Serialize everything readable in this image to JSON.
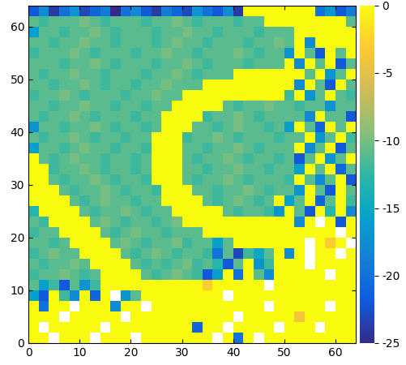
{
  "chart_data": {
    "type": "heatmap",
    "x_edges": [
      0,
      2,
      4,
      6,
      8,
      10,
      12,
      14,
      16,
      18,
      20,
      22,
      24,
      26,
      28,
      30,
      32,
      34,
      36,
      38,
      40,
      42,
      44,
      46,
      48,
      50,
      52,
      54,
      56,
      58,
      60,
      62,
      64
    ],
    "y_edges": [
      0,
      2,
      4,
      6,
      8,
      10,
      12,
      14,
      16,
      18,
      20,
      22,
      24,
      26,
      28,
      30,
      32,
      34,
      36,
      38,
      40,
      42,
      44,
      46,
      48,
      50,
      52,
      54,
      56,
      58,
      60,
      62,
      64
    ],
    "xlim": [
      0,
      64
    ],
    "ylim": [
      0,
      64
    ],
    "xticks": [
      0,
      10,
      20,
      30,
      40,
      50,
      60
    ],
    "yticks": [
      0,
      10,
      20,
      30,
      40,
      50,
      60
    ],
    "colorbar_range": [
      -25,
      0
    ],
    "colorbar_ticks": [
      -25,
      -20,
      -15,
      -10,
      -5,
      0
    ],
    "cells": [
      [
        0,
        0,
        null,
        0,
        0,
        0,
        null,
        0,
        0,
        0,
        null,
        0,
        0,
        0,
        0,
        0,
        0,
        0,
        null,
        0,
        -20,
        0,
        null,
        0,
        0,
        0,
        0,
        0,
        0,
        0,
        0,
        0
      ],
      [
        0,
        null,
        0,
        0,
        0,
        0,
        0,
        null,
        0,
        0,
        0,
        0,
        0,
        0,
        0,
        0,
        -21,
        0,
        0,
        null,
        0,
        0,
        0,
        0,
        null,
        0,
        0,
        0,
        null,
        0,
        0,
        0
      ],
      [
        0,
        0,
        0,
        null,
        0,
        0,
        0,
        0,
        0,
        null,
        0,
        0,
        0,
        0,
        0,
        0,
        0,
        0,
        0,
        0,
        null,
        0,
        0,
        0,
        0,
        0,
        -4,
        0,
        0,
        0,
        0,
        0
      ],
      [
        0,
        -20,
        0,
        0,
        null,
        0,
        0,
        0,
        -18,
        0,
        0,
        null,
        0,
        0,
        0,
        0,
        0,
        0,
        0,
        0,
        0,
        0,
        0,
        null,
        0,
        0,
        0,
        0,
        0,
        null,
        0,
        0
      ],
      [
        -16,
        -22,
        0,
        -12,
        -18,
        0,
        -21,
        0,
        null,
        -17,
        -11,
        0,
        0,
        0,
        0,
        0,
        0,
        0,
        0,
        null,
        0,
        0,
        0,
        0,
        0,
        0,
        0,
        0,
        0,
        0,
        0,
        0
      ],
      [
        -11,
        -16,
        -12,
        -22,
        -11,
        -17,
        -12,
        0,
        0,
        0,
        0,
        0,
        0,
        0,
        0,
        0,
        0,
        -3,
        0,
        0,
        0,
        0,
        0,
        null,
        0,
        0,
        0,
        0,
        0,
        0,
        0,
        0
      ],
      [
        -12,
        -11,
        -11,
        -10,
        -11,
        -12,
        -11,
        0,
        0,
        0,
        0,
        -11,
        -12,
        -11,
        -10,
        -11,
        -12,
        -22,
        -16,
        0,
        -20,
        0,
        -11,
        -18,
        0,
        0,
        0,
        0,
        0,
        null,
        0,
        0
      ],
      [
        -11,
        -12,
        -11,
        -11,
        -10,
        -11,
        0,
        0,
        0,
        0,
        -11,
        -12,
        -11,
        -12,
        -11,
        -10,
        -12,
        -11,
        -13,
        -22,
        -11,
        0,
        -17,
        -12,
        0,
        0,
        0,
        null,
        0,
        0,
        0,
        0
      ],
      [
        -12,
        -11,
        -10,
        -11,
        -11,
        0,
        0,
        0,
        0,
        -11,
        -12,
        -11,
        -10,
        -11,
        -12,
        -11,
        -11,
        -12,
        -20,
        -11,
        -23,
        -12,
        -15,
        -11,
        0,
        -18,
        0,
        null,
        0,
        0,
        null,
        0
      ],
      [
        -11,
        -11,
        -12,
        -11,
        0,
        0,
        0,
        0,
        -11,
        -10,
        -11,
        -12,
        -11,
        -11,
        -10,
        -12,
        -11,
        -11,
        -16,
        -11,
        0,
        0,
        0,
        0,
        0,
        0,
        0,
        null,
        0,
        -3,
        0,
        null
      ],
      [
        -12,
        -11,
        -11,
        0,
        0,
        0,
        0,
        -11,
        -12,
        -11,
        -10,
        -11,
        -11,
        -12,
        -11,
        -11,
        -11,
        0,
        0,
        0,
        0,
        0,
        0,
        0,
        0,
        0,
        0,
        0,
        0,
        0,
        null,
        0
      ],
      [
        -11,
        -12,
        0,
        0,
        0,
        0,
        -11,
        -10,
        -11,
        -12,
        -11,
        -11,
        -12,
        -11,
        -10,
        0,
        0,
        0,
        0,
        0,
        0,
        0,
        0,
        0,
        0,
        0,
        -18,
        0,
        null,
        0,
        -22,
        0
      ],
      [
        -13,
        0,
        0,
        0,
        0,
        -11,
        -12,
        -11,
        -11,
        -10,
        -11,
        -12,
        -11,
        -11,
        0,
        0,
        0,
        0,
        0,
        -11,
        -12,
        -11,
        -11,
        -12,
        -17,
        0,
        -11,
        -22,
        0,
        -13,
        0,
        -18
      ],
      [
        0,
        0,
        0,
        0,
        -11,
        -12,
        -11,
        -10,
        -11,
        -11,
        -12,
        -11,
        -11,
        0,
        0,
        0,
        0,
        -11,
        -12,
        -11,
        -10,
        -11,
        -12,
        -11,
        0,
        -16,
        -11,
        0,
        -21,
        -11,
        0,
        -12
      ],
      [
        0,
        0,
        0,
        -11,
        -12,
        -11,
        -11,
        -10,
        -11,
        -12,
        -11,
        -11,
        -12,
        0,
        0,
        0,
        -11,
        -11,
        -12,
        -11,
        -11,
        -10,
        -11,
        -12,
        -11,
        -11,
        -17,
        0,
        -11,
        -22,
        0,
        -11
      ],
      [
        0,
        0,
        -11,
        -12,
        -11,
        -11,
        -10,
        -11,
        -12,
        -11,
        -11,
        -12,
        0,
        0,
        0,
        -11,
        -12,
        -11,
        -11,
        -10,
        -11,
        -12,
        -11,
        -11,
        -11,
        -12,
        0,
        -11,
        -18,
        -11,
        0,
        -22
      ],
      [
        0,
        0,
        -12,
        -11,
        -11,
        -10,
        -11,
        -12,
        -11,
        -11,
        -12,
        -11,
        0,
        0,
        0,
        -11,
        -11,
        -12,
        -11,
        -11,
        -10,
        -11,
        -11,
        -12,
        -11,
        -11,
        -16,
        0,
        -11,
        0,
        -21,
        -11
      ],
      [
        0,
        -11,
        -12,
        -11,
        -10,
        -11,
        -11,
        -12,
        -11,
        -11,
        -12,
        -11,
        0,
        0,
        0,
        -11,
        -12,
        -11,
        -11,
        -10,
        -11,
        -12,
        -11,
        -11,
        -12,
        -11,
        -22,
        -11,
        0,
        -17,
        -11,
        0
      ],
      [
        -16,
        -11,
        -11,
        -12,
        -11,
        -10,
        -11,
        -11,
        -12,
        -11,
        -11,
        -12,
        0,
        0,
        0,
        -11,
        -11,
        -12,
        -11,
        -11,
        -10,
        -11,
        -12,
        -11,
        -11,
        -11,
        0,
        -18,
        -11,
        0,
        -22,
        -11
      ],
      [
        -11,
        -12,
        -11,
        -11,
        -10,
        -11,
        -12,
        -11,
        -11,
        -12,
        -11,
        -11,
        0,
        0,
        0,
        -12,
        -11,
        -11,
        -10,
        -11,
        -12,
        -11,
        -11,
        -11,
        -12,
        -11,
        -11,
        0,
        -17,
        -11,
        0,
        -12
      ],
      [
        -17,
        -11,
        -11,
        -12,
        -11,
        -11,
        -10,
        -11,
        -12,
        -11,
        -11,
        -12,
        -11,
        0,
        0,
        0,
        -11,
        -11,
        -12,
        -11,
        -10,
        -11,
        -11,
        -12,
        -11,
        -16,
        0,
        -11,
        -21,
        0,
        -11,
        0
      ],
      [
        -11,
        -12,
        -11,
        -11,
        -10,
        -11,
        -12,
        -11,
        -11,
        -11,
        -12,
        -11,
        -11,
        0,
        0,
        0,
        0,
        -12,
        -11,
        -11,
        -10,
        -11,
        -12,
        -11,
        -11,
        -11,
        -11,
        -18,
        0,
        -11,
        -11,
        -22
      ],
      [
        -11,
        -11,
        -12,
        -11,
        -11,
        -10,
        -11,
        -11,
        -12,
        -11,
        -11,
        -12,
        -11,
        -11,
        0,
        0,
        0,
        0,
        0,
        -11,
        -12,
        -11,
        -11,
        -10,
        -11,
        -11,
        -12,
        -11,
        -11,
        -17,
        -11,
        -11
      ],
      [
        -12,
        -11,
        -11,
        -10,
        -11,
        -12,
        -11,
        -11,
        -11,
        -12,
        -11,
        -11,
        -10,
        -11,
        -11,
        0,
        0,
        0,
        0,
        0,
        0,
        0,
        0,
        0,
        0,
        -12,
        0,
        -17,
        -11,
        0,
        -11,
        -12
      ],
      [
        -11,
        -11,
        -12,
        -11,
        -11,
        -10,
        -11,
        -12,
        -11,
        -11,
        -12,
        -11,
        -11,
        -10,
        -11,
        -11,
        -11,
        0,
        0,
        0,
        0,
        0,
        0,
        0,
        0,
        0,
        -18,
        0,
        -11,
        -22,
        0,
        -11
      ],
      [
        -11,
        -12,
        -11,
        -11,
        -10,
        -11,
        -11,
        -12,
        -11,
        -11,
        -11,
        -12,
        -11,
        -11,
        -10,
        -11,
        -12,
        -11,
        -11,
        -11,
        0,
        0,
        0,
        0,
        0,
        0,
        0,
        -11,
        0,
        -17,
        -11,
        0
      ],
      [
        -11,
        -11,
        -11,
        -12,
        -11,
        -11,
        -10,
        -11,
        -12,
        -11,
        -11,
        -11,
        -12,
        -11,
        -11,
        -10,
        -11,
        -12,
        -11,
        -11,
        -11,
        -12,
        -11,
        -11,
        -11,
        0,
        -18,
        0,
        -11,
        0,
        -22,
        -11
      ],
      [
        -12,
        -11,
        -11,
        -11,
        -10,
        -11,
        -12,
        -11,
        -11,
        -11,
        -12,
        -11,
        -11,
        -10,
        -11,
        -11,
        -12,
        -11,
        -11,
        -11,
        -10,
        -11,
        -12,
        -11,
        -11,
        -17,
        0,
        -11,
        -22,
        0,
        -11,
        0
      ],
      [
        -11,
        -11,
        -12,
        -11,
        -11,
        -10,
        -11,
        -11,
        -12,
        -11,
        -11,
        -11,
        -12,
        -11,
        -10,
        -11,
        -11,
        -12,
        -11,
        -11,
        -11,
        -12,
        -11,
        -11,
        -10,
        -11,
        0,
        -18,
        0,
        0,
        0,
        0
      ],
      [
        -16,
        -11,
        -11,
        -12,
        -11,
        -11,
        -10,
        -11,
        -12,
        -11,
        -11,
        -11,
        -12,
        -11,
        -11,
        -10,
        -11,
        -11,
        -12,
        -11,
        -11,
        -11,
        -12,
        -11,
        -11,
        -11,
        0,
        0,
        0,
        0,
        0,
        0
      ],
      [
        -11,
        -12,
        -11,
        -11,
        -11,
        -10,
        -11,
        -12,
        -11,
        -11,
        -11,
        -12,
        -11,
        -11,
        -10,
        -11,
        -12,
        -11,
        -11,
        -11,
        -12,
        -11,
        -11,
        0,
        0,
        0,
        0,
        0,
        0,
        0,
        0,
        -11
      ],
      [
        -22,
        -18,
        -24,
        -20,
        -17,
        -23,
        -21,
        -19,
        -25,
        -20,
        -18,
        -22,
        -24,
        -19,
        -21,
        -23,
        -17,
        -20,
        -22,
        -18,
        -24,
        0,
        0,
        0,
        0,
        0,
        0,
        0,
        -20,
        -17,
        -22,
        -19
      ]
    ]
  }
}
